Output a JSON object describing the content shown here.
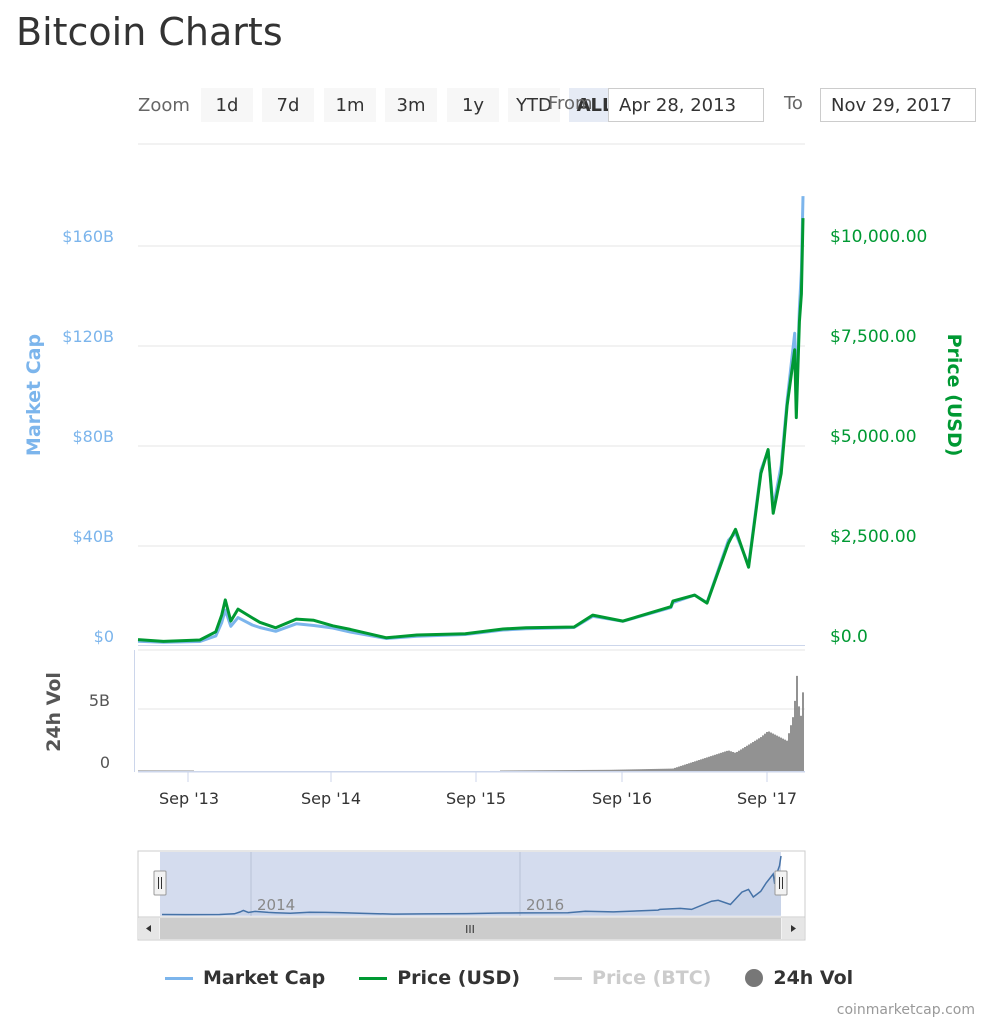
{
  "title": "Bitcoin Charts",
  "zoom": {
    "label": "Zoom",
    "buttons": [
      "1d",
      "7d",
      "1m",
      "3m",
      "1y",
      "YTD",
      "ALL"
    ],
    "active": "ALL"
  },
  "range": {
    "from_label": "From",
    "from_value": "Apr 28, 2013",
    "to_label": "To",
    "to_value": "Nov 29, 2017"
  },
  "colors": {
    "market_cap": "#7cb5ec",
    "price_usd": "#009933",
    "price_btc": "#cccccc",
    "volume": "#777777",
    "navigator_fill": "#ccd6eb",
    "navigator_line": "#4572a7"
  },
  "chart_data": {
    "type": "line",
    "x_range": [
      "2013-04-28",
      "2017-11-29"
    ],
    "x_ticks": [
      "Sep '13",
      "Sep '14",
      "Sep '15",
      "Sep '16",
      "Sep '17"
    ],
    "y_left": {
      "label": "Market Cap",
      "ticks": [
        "$0",
        "$40B",
        "$80B",
        "$120B",
        "$160B"
      ],
      "range": [
        0,
        160000000000
      ]
    },
    "y_right": {
      "label": "Price (USD)",
      "ticks": [
        "$0.0",
        "$2,500.00",
        "$5,000.00",
        "$7,500.00",
        "$10,000.00"
      ],
      "range": [
        0,
        10000
      ]
    },
    "y_volume": {
      "label": "24h Vol",
      "ticks": [
        "0",
        "5B"
      ],
      "range": [
        0,
        10000000000
      ]
    },
    "series": [
      {
        "name": "Market Cap",
        "unit": "USD",
        "points": [
          [
            "2013-04-28",
            1500000000.0
          ],
          [
            "2013-07-01",
            1100000000.0
          ],
          [
            "2013-10-01",
            1400000000.0
          ],
          [
            "2013-11-10",
            3600000000.0
          ],
          [
            "2013-11-25",
            9000000000.0
          ],
          [
            "2013-12-04",
            14000000000.0
          ],
          [
            "2013-12-18",
            7500000000.0
          ],
          [
            "2014-01-05",
            11000000000.0
          ],
          [
            "2014-02-10",
            8000000000.0
          ],
          [
            "2014-03-01",
            7000000000.0
          ],
          [
            "2014-04-10",
            5500000000.0
          ],
          [
            "2014-06-01",
            8500000000.0
          ],
          [
            "2014-07-15",
            7800000000.0
          ],
          [
            "2014-09-01",
            6800000000.0
          ],
          [
            "2014-10-15",
            5200000000.0
          ],
          [
            "2015-01-14",
            2600000000.0
          ],
          [
            "2015-04-01",
            3500000000.0
          ],
          [
            "2015-08-01",
            4200000000.0
          ],
          [
            "2015-11-04",
            6000000000.0
          ],
          [
            "2016-01-01",
            6500000000.0
          ],
          [
            "2016-05-01",
            7000000000.0
          ],
          [
            "2016-06-17",
            11500000000.0
          ],
          [
            "2016-09-01",
            9500000000.0
          ],
          [
            "2016-12-31",
            15000000000.0
          ],
          [
            "2017-01-05",
            17000000000.0
          ],
          [
            "2017-03-01",
            20000000000.0
          ],
          [
            "2017-04-01",
            17000000000.0
          ],
          [
            "2017-05-25",
            42000000000.0
          ],
          [
            "2017-06-12",
            45000000000.0
          ],
          [
            "2017-07-15",
            32000000000.0
          ],
          [
            "2017-08-15",
            70000000000.0
          ],
          [
            "2017-09-02",
            78000000000.0
          ],
          [
            "2017-09-15",
            55000000000.0
          ],
          [
            "2017-10-05",
            72000000000.0
          ],
          [
            "2017-10-20",
            98000000000.0
          ],
          [
            "2017-11-08",
            125000000000.0
          ],
          [
            "2017-11-12",
            95000000000.0
          ],
          [
            "2017-11-20",
            135000000000.0
          ],
          [
            "2017-11-25",
            150000000000.0
          ],
          [
            "2017-11-29",
            180000000000.0
          ]
        ]
      },
      {
        "name": "Price (USD)",
        "unit": "USD",
        "points": [
          [
            "2013-04-28",
            135
          ],
          [
            "2013-07-01",
            90
          ],
          [
            "2013-10-01",
            125
          ],
          [
            "2013-11-10",
            330
          ],
          [
            "2013-11-25",
            750
          ],
          [
            "2013-12-04",
            1130
          ],
          [
            "2013-12-18",
            600
          ],
          [
            "2014-01-05",
            900
          ],
          [
            "2014-02-10",
            680
          ],
          [
            "2014-03-01",
            570
          ],
          [
            "2014-04-10",
            430
          ],
          [
            "2014-06-01",
            650
          ],
          [
            "2014-07-15",
            620
          ],
          [
            "2014-09-01",
            480
          ],
          [
            "2014-10-15",
            390
          ],
          [
            "2015-01-14",
            180
          ],
          [
            "2015-04-01",
            250
          ],
          [
            "2015-08-01",
            280
          ],
          [
            "2015-11-04",
            400
          ],
          [
            "2016-01-01",
            430
          ],
          [
            "2016-05-01",
            450
          ],
          [
            "2016-06-17",
            750
          ],
          [
            "2016-09-01",
            600
          ],
          [
            "2016-12-31",
            960
          ],
          [
            "2017-01-05",
            1100
          ],
          [
            "2017-03-01",
            1250
          ],
          [
            "2017-04-01",
            1050
          ],
          [
            "2017-05-25",
            2550
          ],
          [
            "2017-06-12",
            2900
          ],
          [
            "2017-07-15",
            1950
          ],
          [
            "2017-08-15",
            4300
          ],
          [
            "2017-09-02",
            4900
          ],
          [
            "2017-09-15",
            3300
          ],
          [
            "2017-10-05",
            4300
          ],
          [
            "2017-10-20",
            6000
          ],
          [
            "2017-11-08",
            7400
          ],
          [
            "2017-11-12",
            5700
          ],
          [
            "2017-11-20",
            8100
          ],
          [
            "2017-11-25",
            8800
          ],
          [
            "2017-11-29",
            10700
          ]
        ]
      },
      {
        "name": "24h Vol",
        "unit": "USD",
        "points": [
          [
            "2013-04-28",
            50000000.0
          ],
          [
            "2014-09-01",
            20000000.0
          ],
          [
            "2015-09-01",
            30000000.0
          ],
          [
            "2016-08-01",
            100000000.0
          ],
          [
            "2017-01-05",
            200000000.0
          ],
          [
            "2017-05-25",
            1700000000.0
          ],
          [
            "2017-06-12",
            1500000000.0
          ],
          [
            "2017-08-15",
            2800000000.0
          ],
          [
            "2017-09-02",
            3300000000.0
          ],
          [
            "2017-10-20",
            2500000000.0
          ],
          [
            "2017-11-08",
            5000000000.0
          ],
          [
            "2017-11-12",
            8800000000.0
          ],
          [
            "2017-11-20",
            4800000000.0
          ],
          [
            "2017-11-25",
            4500000000.0
          ],
          [
            "2017-11-29",
            6500000000.0
          ]
        ]
      }
    ],
    "navigator": {
      "x_ticks": [
        "2014",
        "2016"
      ],
      "scrollbar_grip": "III"
    },
    "legend": {
      "placement": "bottom",
      "items": [
        {
          "name": "Market Cap",
          "symbol": "line",
          "color": "#7cb5ec",
          "enabled": true
        },
        {
          "name": "Price (USD)",
          "symbol": "line",
          "color": "#009933",
          "enabled": true
        },
        {
          "name": "Price (BTC)",
          "symbol": "line",
          "color": "#cccccc",
          "enabled": false
        },
        {
          "name": "24h Vol",
          "symbol": "circle",
          "color": "#777777",
          "enabled": true
        }
      ]
    }
  },
  "credits": "coinmarketcap.com"
}
